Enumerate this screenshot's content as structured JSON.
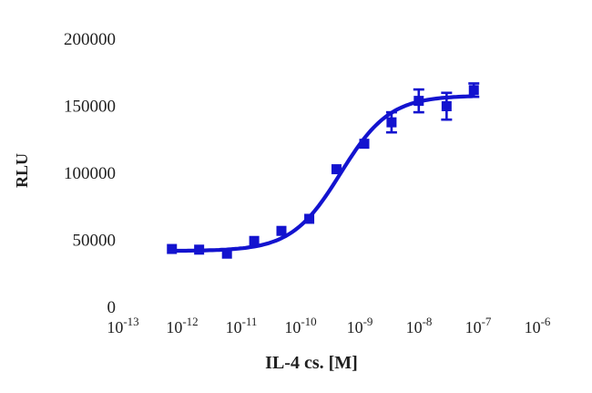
{
  "figure": {
    "background": "#ffffff",
    "accent_blue": "#1313cf",
    "text_color": "#1f1f1f"
  },
  "chart_data": {
    "type": "scatter",
    "title": "",
    "xlabel": "IL-4 cs. [M]",
    "ylabel": "RLU",
    "x_scale": "log10",
    "x_tick_exponents": [
      -13,
      -12,
      -11,
      -10,
      -9,
      -8,
      -7,
      -6
    ],
    "x_tick_base": "10",
    "y_ticks": [
      0,
      50000,
      100000,
      150000,
      200000
    ],
    "y_tick_labels": [
      "0",
      "50000",
      "100000",
      "150000",
      "200000"
    ],
    "ylim": [
      0,
      200000
    ],
    "xlim_log": [
      -13.3,
      -5.7
    ],
    "grid": false,
    "legend": null,
    "marker": "square",
    "marker_color": "#1313cf",
    "line_color": "#1313cf",
    "points": [
      {
        "log_x": -12.05,
        "y": 43500,
        "yerr": null
      },
      {
        "log_x": -11.59,
        "y": 43000,
        "yerr": null
      },
      {
        "log_x": -11.12,
        "y": 40000,
        "yerr": null
      },
      {
        "log_x": -10.66,
        "y": 49500,
        "yerr": null
      },
      {
        "log_x": -10.2,
        "y": 57000,
        "yerr": null
      },
      {
        "log_x": -9.73,
        "y": 66000,
        "yerr": null
      },
      {
        "log_x": -9.27,
        "y": 103000,
        "yerr": null
      },
      {
        "log_x": -8.8,
        "y": 122000,
        "yerr": null
      },
      {
        "log_x": -8.34,
        "y": 138000,
        "yerr": 7500
      },
      {
        "log_x": -7.88,
        "y": 154000,
        "yerr": 8500
      },
      {
        "log_x": -7.41,
        "y": 150000,
        "yerr": 10000
      },
      {
        "log_x": -6.95,
        "y": 162000,
        "yerr": 5000
      }
    ],
    "fit": {
      "type": "4PL-sigmoid",
      "bottom": 42000,
      "top": 158000,
      "log_ec50": -9.2,
      "hill": 1.05
    }
  }
}
